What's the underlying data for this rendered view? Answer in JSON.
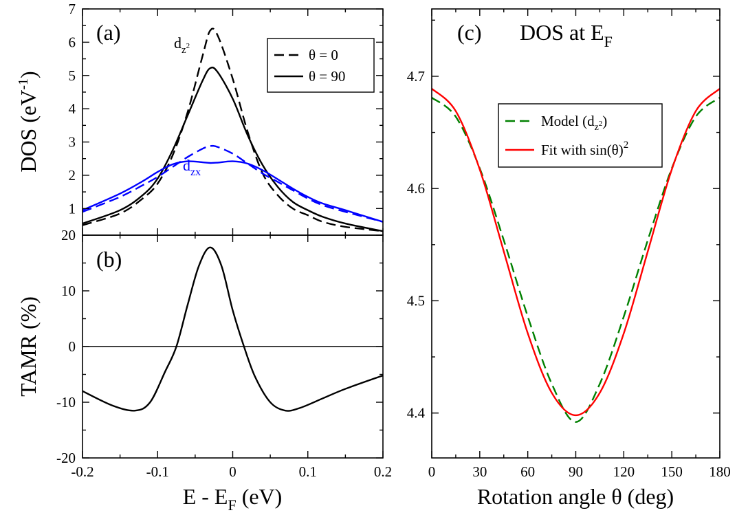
{
  "chart_data": [
    {
      "panel_label": "(a)",
      "type": "line",
      "ylabel": "DOS (eV",
      "ylabel_sup": "-1",
      "ylabel_close": ")",
      "xlim": [
        -0.2,
        0.2
      ],
      "ylim": [
        0.2,
        7
      ],
      "yticks": [
        "1",
        "2",
        "3",
        "4",
        "5",
        "6",
        "7"
      ],
      "ytick_values": [
        1,
        2,
        3,
        4,
        5,
        6,
        7
      ],
      "legend_position": "top-right",
      "legend": [
        {
          "label": "θ = 0",
          "style": "dashed",
          "color": "#000000"
        },
        {
          "label": "θ = 90",
          "style": "solid",
          "color": "#000000"
        }
      ],
      "annotations": {
        "dz2": {
          "main": "d",
          "sub": "z",
          "subsub": "2",
          "color": "#000000"
        },
        "dzx": {
          "main": "d",
          "sub": "zx",
          "color": "#0000ff"
        }
      },
      "x": [
        -0.2,
        -0.15,
        -0.12,
        -0.1,
        -0.08,
        -0.06,
        -0.04,
        -0.03,
        -0.02,
        0.0,
        0.02,
        0.04,
        0.06,
        0.08,
        0.1,
        0.12,
        0.15,
        0.2
      ],
      "series": [
        {
          "orbital": "dz2",
          "theta": "0",
          "style": "dashed",
          "color": "#000000",
          "values": [
            0.5,
            0.85,
            1.3,
            1.75,
            2.6,
            3.9,
            5.6,
            6.35,
            6.2,
            4.9,
            3.3,
            2.05,
            1.4,
            1.0,
            0.8,
            0.6,
            0.45,
            0.32
          ]
        },
        {
          "orbital": "dz2",
          "theta": "90",
          "style": "solid",
          "color": "#000000",
          "values": [
            0.55,
            0.95,
            1.4,
            1.9,
            2.75,
            3.8,
            4.85,
            5.22,
            5.1,
            4.3,
            3.2,
            2.3,
            1.65,
            1.2,
            0.95,
            0.75,
            0.55,
            0.32
          ]
        },
        {
          "orbital": "dzx",
          "theta": "0",
          "style": "dashed",
          "color": "#0000ff",
          "values": [
            0.9,
            1.35,
            1.7,
            1.95,
            2.25,
            2.55,
            2.8,
            2.88,
            2.85,
            2.65,
            2.35,
            2.05,
            1.8,
            1.55,
            1.3,
            1.1,
            0.9,
            0.6
          ]
        },
        {
          "orbital": "dzx",
          "theta": "90",
          "style": "solid",
          "color": "#0000ff",
          "values": [
            0.95,
            1.45,
            1.82,
            2.1,
            2.33,
            2.42,
            2.39,
            2.37,
            2.38,
            2.42,
            2.35,
            2.15,
            1.88,
            1.6,
            1.35,
            1.15,
            0.95,
            0.6
          ]
        }
      ]
    },
    {
      "panel_label": "(b)",
      "type": "line",
      "xlabel": "E - E",
      "xlabel_sub": "F",
      "xlabel_unit": " (eV)",
      "ylabel": "TAMR (%)",
      "xlim": [
        -0.2,
        0.2
      ],
      "ylim": [
        -20,
        20
      ],
      "xticks": [
        "-0.2",
        "-0.1",
        "0",
        "0.1",
        "0.2"
      ],
      "xtick_values": [
        -0.2,
        -0.1,
        0,
        0.1,
        0.2
      ],
      "yticks": [
        "-20",
        "-10",
        "0",
        "10",
        "20"
      ],
      "ytick_values": [
        -20,
        -10,
        0,
        10,
        20
      ],
      "hline": 0,
      "x": [
        -0.2,
        -0.16,
        -0.13,
        -0.11,
        -0.09,
        -0.075,
        -0.06,
        -0.045,
        -0.03,
        -0.015,
        0.0,
        0.015,
        0.03,
        0.05,
        0.07,
        0.09,
        0.12,
        0.15,
        0.2
      ],
      "series": [
        {
          "style": "solid",
          "color": "#000000",
          "values": [
            -8.0,
            -10.6,
            -11.5,
            -10.0,
            -4.5,
            0.0,
            7.5,
            14.5,
            17.8,
            14.5,
            6.5,
            0.0,
            -5.5,
            -10.0,
            -11.5,
            -11.0,
            -9.3,
            -7.6,
            -5.2
          ]
        }
      ]
    },
    {
      "panel_label": "(c)",
      "title": "DOS at E",
      "title_sub": "F",
      "type": "line",
      "xlabel": "Rotation angle θ (deg)",
      "xlim": [
        0,
        180
      ],
      "ylim": [
        4.36,
        4.76
      ],
      "xticks": [
        "0",
        "30",
        "60",
        "90",
        "120",
        "150",
        "180"
      ],
      "xtick_values": [
        0,
        30,
        60,
        90,
        120,
        150,
        180
      ],
      "yticks": [
        "4.4",
        "4.5",
        "4.6",
        "4.7"
      ],
      "ytick_values": [
        4.4,
        4.5,
        4.6,
        4.7
      ],
      "legend_position": "top-right",
      "legend": [
        {
          "label": "Model (d",
          "sub": "z",
          "subsub": "2",
          "close": ")",
          "style": "dashed",
          "color": "#008000"
        },
        {
          "label": "Fit with sin(θ)",
          "sup": "2",
          "style": "solid",
          "color": "#ff0000"
        }
      ],
      "x": [
        0,
        15,
        30,
        45,
        60,
        75,
        90,
        105,
        120,
        135,
        150,
        165,
        180
      ],
      "series": [
        {
          "name": "Model (dz²)",
          "style": "dashed",
          "color": "#008000",
          "values": [
            4.681,
            4.664,
            4.618,
            4.554,
            4.486,
            4.426,
            4.392,
            4.426,
            4.486,
            4.554,
            4.618,
            4.664,
            4.681
          ]
        },
        {
          "name": "Fit with sin(θ)²",
          "style": "solid",
          "color": "#ff0000",
          "values": [
            4.689,
            4.669,
            4.617,
            4.544,
            4.471,
            4.418,
            4.398,
            4.418,
            4.471,
            4.544,
            4.617,
            4.669,
            4.689
          ]
        }
      ]
    }
  ]
}
